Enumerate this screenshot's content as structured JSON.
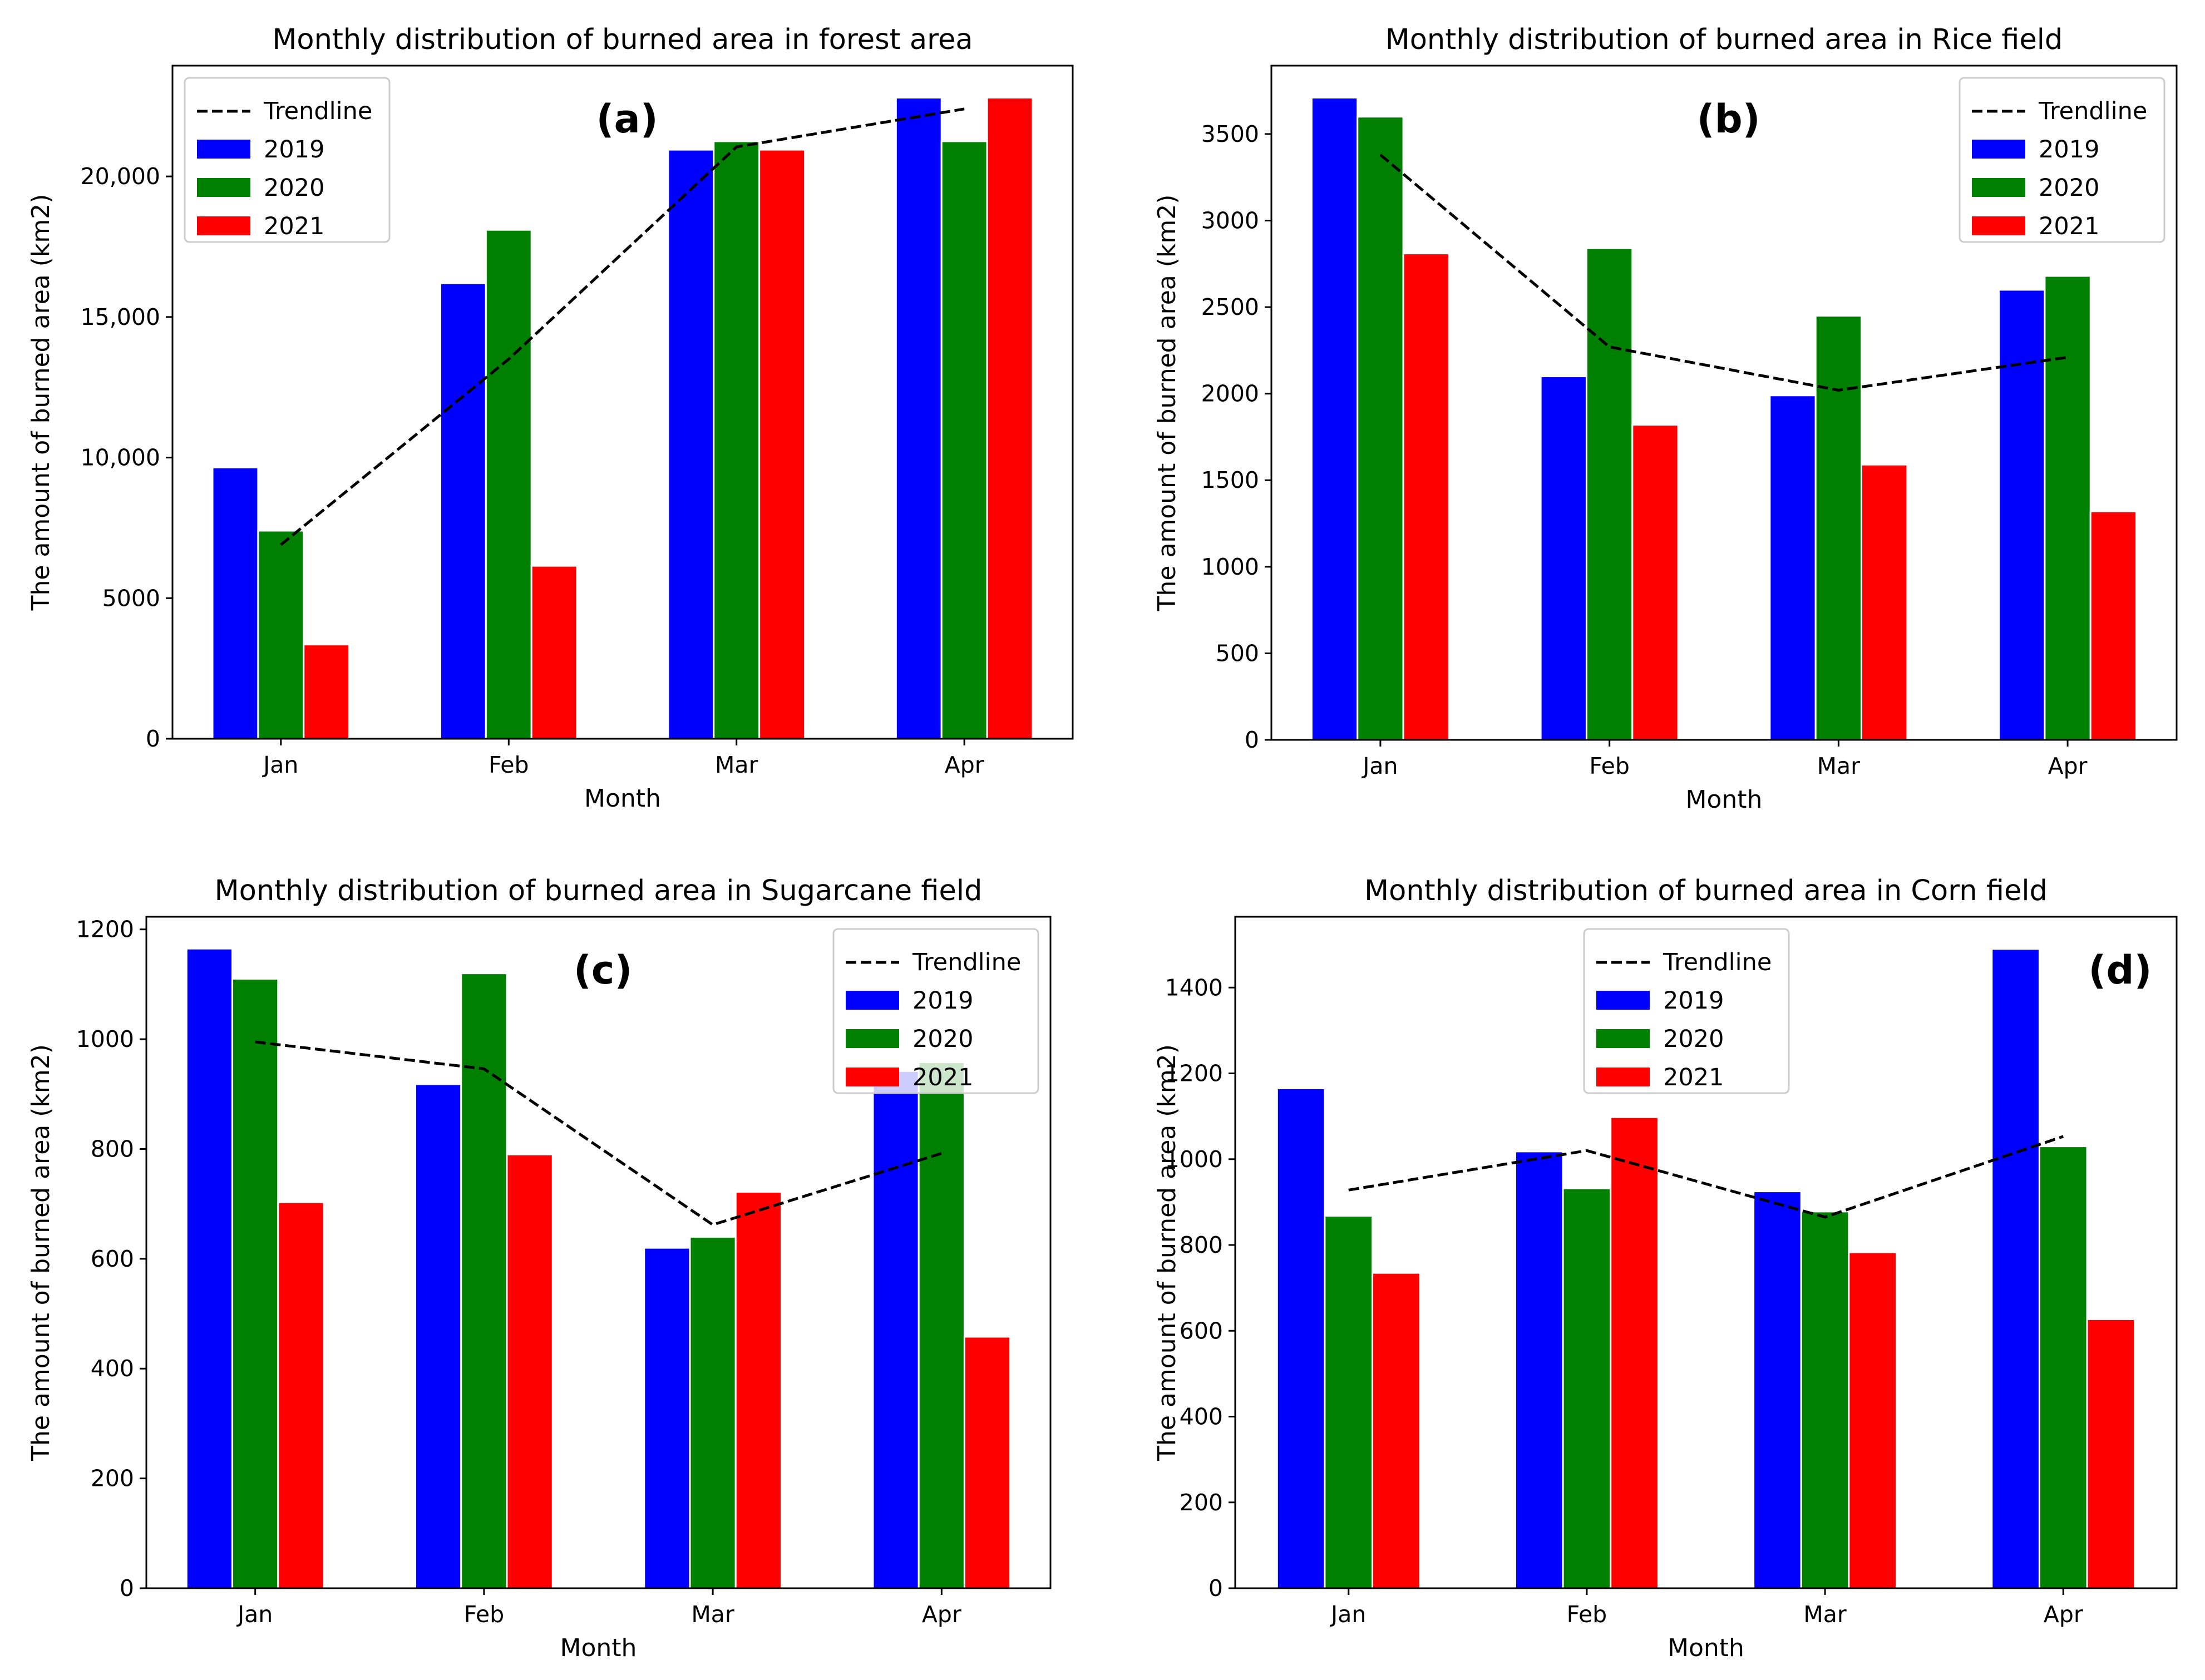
{
  "chart_data": [
    {
      "id": "a",
      "type": "bar",
      "title": "Monthly distribution of burned area in forest area",
      "panel_label": "(a)",
      "xlabel": "Month",
      "ylabel": "The amount of burned area (km2)",
      "categories": [
        "Jan",
        "Feb",
        "Mar",
        "Apr"
      ],
      "series": [
        {
          "name": "2019",
          "color": "#0000ff",
          "values": [
            9650,
            16200,
            20950,
            22800
          ]
        },
        {
          "name": "2020",
          "color": "#008000",
          "values": [
            7400,
            18100,
            21250,
            21250
          ]
        },
        {
          "name": "2021",
          "color": "#ff0000",
          "values": [
            3350,
            6150,
            20950,
            22800
          ]
        }
      ],
      "trendline": {
        "name": "Trendline",
        "values": [
          6900,
          13500,
          21050,
          22400
        ]
      },
      "ylim": [
        0,
        23940
      ],
      "yticks": [
        0,
        5000,
        10000,
        15000,
        20000
      ],
      "ytick_labels": [
        "0",
        "5000",
        "10,000",
        "15,000",
        "20,000"
      ],
      "legend_position": "top-left",
      "label_position": "upper-center"
    },
    {
      "id": "b",
      "type": "bar",
      "title": "Monthly distribution of burned area in Rice field",
      "panel_label": "(b)",
      "xlabel": "Month",
      "ylabel": "The amount of burned area (km2)",
      "categories": [
        "Jan",
        "Feb",
        "Mar",
        "Apr"
      ],
      "series": [
        {
          "name": "2019",
          "color": "#0000ff",
          "values": [
            3710,
            2100,
            1990,
            2600
          ]
        },
        {
          "name": "2020",
          "color": "#008000",
          "values": [
            3600,
            2840,
            2450,
            2680
          ]
        },
        {
          "name": "2021",
          "color": "#ff0000",
          "values": [
            2810,
            1820,
            1590,
            1320
          ]
        }
      ],
      "trendline": {
        "name": "Trendline",
        "values": [
          3380,
          2270,
          2020,
          2210
        ]
      },
      "ylim": [
        0,
        3895
      ],
      "yticks": [
        0,
        500,
        1000,
        1500,
        2000,
        2500,
        3000,
        3500
      ],
      "ytick_labels": [
        "0",
        "500",
        "1000",
        "1500",
        "2000",
        "2500",
        "3000",
        "3500"
      ],
      "legend_position": "top-right",
      "label_position": "upper-center"
    },
    {
      "id": "c",
      "type": "bar",
      "title": "Monthly distribution of burned area in Sugarcane field",
      "panel_label": "(c)",
      "xlabel": "Month",
      "ylabel": "The amount of burned area (km2)",
      "categories": [
        "Jan",
        "Feb",
        "Mar",
        "Apr"
      ],
      "series": [
        {
          "name": "2019",
          "color": "#0000ff",
          "values": [
            1165,
            918,
            620,
            942
          ]
        },
        {
          "name": "2020",
          "color": "#008000",
          "values": [
            1110,
            1120,
            640,
            958
          ]
        },
        {
          "name": "2021",
          "color": "#ff0000",
          "values": [
            703,
            790,
            722,
            458
          ]
        }
      ],
      "trendline": {
        "name": "Trendline",
        "values": [
          995,
          946,
          662,
          792
        ]
      },
      "ylim": [
        0,
        1223
      ],
      "yticks": [
        0,
        200,
        400,
        600,
        800,
        1000,
        1200
      ],
      "ytick_labels": [
        "0",
        "200",
        "400",
        "600",
        "800",
        "1000",
        "1200"
      ],
      "legend_position": "top-right",
      "label_position": "upper-center"
    },
    {
      "id": "d",
      "type": "bar",
      "title": "Monthly distribution of burned area in Corn field",
      "panel_label": "(d)",
      "xlabel": "Month",
      "ylabel": "The amount of burned area (km2)",
      "categories": [
        "Jan",
        "Feb",
        "Mar",
        "Apr"
      ],
      "series": [
        {
          "name": "2019",
          "color": "#0000ff",
          "values": [
            1165,
            1018,
            925,
            1490
          ]
        },
        {
          "name": "2020",
          "color": "#008000",
          "values": [
            868,
            932,
            878,
            1030
          ]
        },
        {
          "name": "2021",
          "color": "#ff0000",
          "values": [
            735,
            1098,
            783,
            627
          ]
        }
      ],
      "trendline": {
        "name": "Trendline",
        "values": [
          928,
          1020,
          865,
          1053
        ]
      },
      "ylim": [
        0,
        1565
      ],
      "yticks": [
        0,
        200,
        400,
        600,
        800,
        1000,
        1200,
        1400
      ],
      "ytick_labels": [
        "0",
        "200",
        "400",
        "600",
        "800",
        "1000",
        "1200",
        "1400"
      ],
      "legend_position": "top-center",
      "label_position": "upper-right"
    }
  ]
}
